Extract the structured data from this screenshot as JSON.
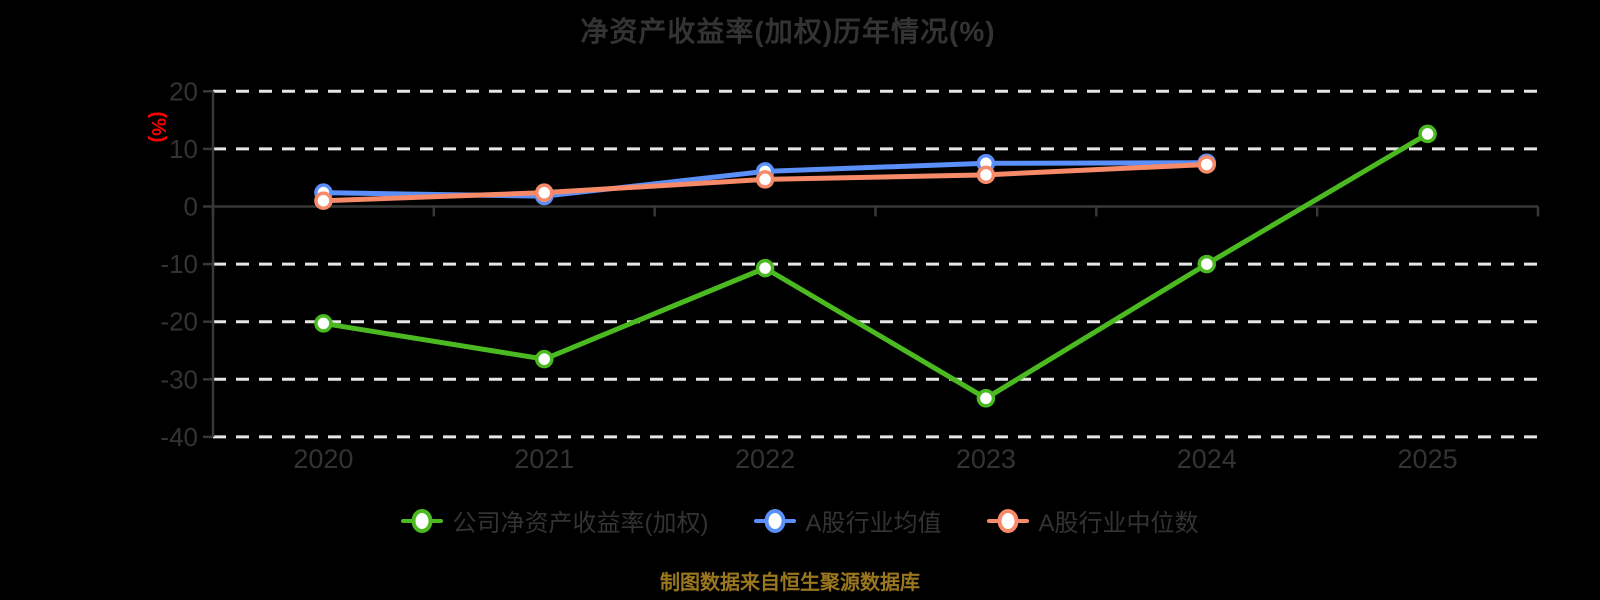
{
  "title": "净资产收益率(加权)历年情况(%)",
  "y_axis_unit_label": "(%)",
  "y_axis_unit_color": "#ff0000",
  "source_note": "制图数据来自恒生聚源数据库",
  "source_note_color": "#9a771e",
  "chart_data": {
    "type": "line",
    "title": "净资产收益率(加权)历年情况(%)",
    "categories": [
      "2020",
      "2021",
      "2022",
      "2023",
      "2024",
      "2025"
    ],
    "series": [
      {
        "name": "公司净资产收益率(加权)",
        "color": "#4aba20",
        "values": [
          -20.3,
          -26.5,
          -10.7,
          -33.3,
          -10.0,
          12.6
        ]
      },
      {
        "name": "A股行业均值",
        "color": "#5b8ff9",
        "values": [
          2.4,
          1.8,
          6.1,
          7.5,
          7.6,
          null
        ]
      },
      {
        "name": "A股行业中位数",
        "color": "#f78a68",
        "values": [
          1.0,
          2.4,
          4.7,
          5.5,
          7.3,
          null
        ]
      }
    ],
    "xlabel": "",
    "ylabel": "(%)",
    "ylim": [
      -40,
      20
    ],
    "yticks": [
      20,
      10,
      0,
      -10,
      -20,
      -30,
      -40
    ],
    "grid": true,
    "gridline_style": "dashed",
    "legend_position": "bottom",
    "marker": "circle-white-fill"
  }
}
